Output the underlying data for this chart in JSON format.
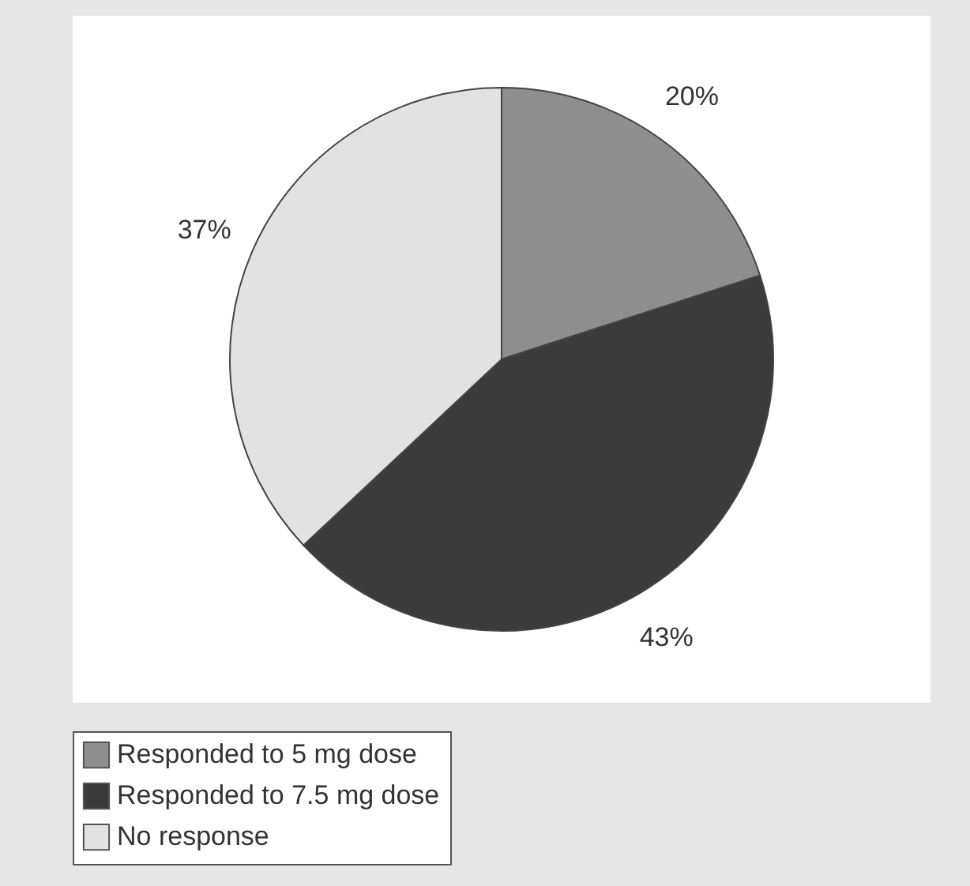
{
  "chart_data": {
    "type": "pie",
    "categories": [
      "Responded to 5 mg dose",
      "Responded to 7.5 mg dose",
      "No response"
    ],
    "values": [
      20,
      43,
      37
    ],
    "colors": [
      "#8e8e8e",
      "#3b3b3b",
      "#e2e2e2"
    ],
    "value_labels": [
      "20%",
      "43%",
      "37%"
    ],
    "legend": "bottom"
  }
}
